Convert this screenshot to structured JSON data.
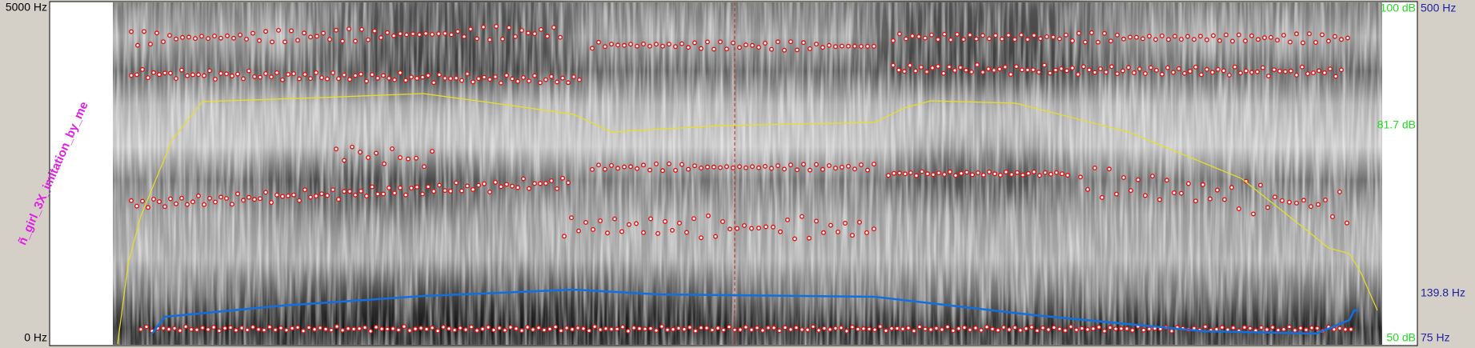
{
  "axis": {
    "frequency_top": "5000 Hz",
    "frequency_bottom": "0 Hz",
    "intensity_top": "100 dB",
    "intensity_cursor": "81.7 dB",
    "intensity_bottom": "50 dB",
    "pitch_top": "500 Hz",
    "pitch_cursor": "139.8 Hz",
    "pitch_bottom": "75 Hz"
  },
  "tier_label": "ñ_girl_3X_imitation_by_me"
}
